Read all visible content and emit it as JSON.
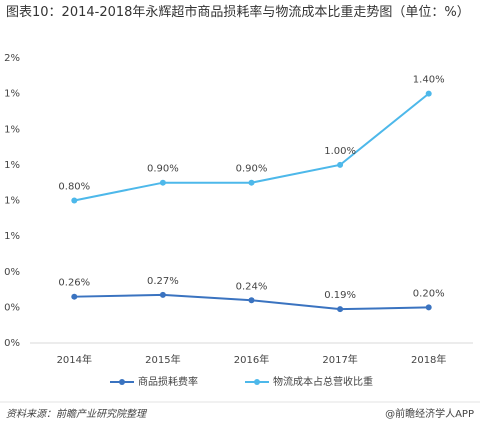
{
  "chart_data": {
    "type": "line",
    "title": "图表10：2014-2018年永辉超市商品损耗率与物流成本比重走势图（单位：%）",
    "categories": [
      "2014年",
      "2015年",
      "2016年",
      "2017年",
      "2018年"
    ],
    "series": [
      {
        "name": "商品损耗费率",
        "color": "#3a73c0",
        "values": [
          0.26,
          0.27,
          0.24,
          0.19,
          0.2
        ],
        "value_labels": [
          "0.26%",
          "0.27%",
          "0.24%",
          "0.19%",
          "0.20%"
        ]
      },
      {
        "name": "物流成本占总营收比重",
        "color": "#4db8ea",
        "values": [
          0.8,
          0.9,
          0.9,
          1.0,
          1.4
        ],
        "value_labels": [
          "0.80%",
          "0.90%",
          "0.90%",
          "1.00%",
          "1.40%"
        ]
      }
    ],
    "ylim": [
      0,
      1.6
    ],
    "yticks": [
      {
        "value": 0,
        "label": "0%"
      },
      {
        "value": 0.2,
        "label": "0%"
      },
      {
        "value": 0.4,
        "label": "0%"
      },
      {
        "value": 0.6,
        "label": "1%"
      },
      {
        "value": 0.8,
        "label": "1%"
      },
      {
        "value": 1.0,
        "label": "1%"
      },
      {
        "value": 1.2,
        "label": "1%"
      },
      {
        "value": 1.4,
        "label": "1%"
      },
      {
        "value": 1.6,
        "label": "2%"
      }
    ],
    "source": "资料来源：前瞻产业研究院整理",
    "brand": "@前瞻经济学人APP"
  }
}
